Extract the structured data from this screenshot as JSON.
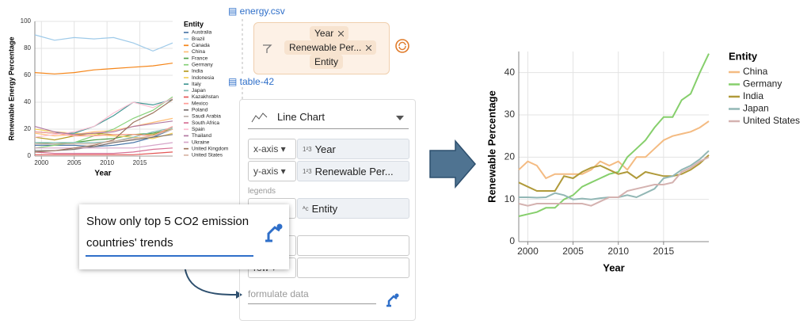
{
  "chart_data": [
    {
      "type": "line",
      "y_label": "Renewable Energy Percentage",
      "x_label": "Year",
      "legend_title": "Entity",
      "x": [
        1999,
        2002,
        2005,
        2008,
        2011,
        2014,
        2017,
        2020
      ],
      "xlim": [
        1999,
        2020
      ],
      "xticks": [
        2000,
        2005,
        2010,
        2015
      ],
      "ylim": [
        0,
        100
      ],
      "yticks": [
        0,
        20,
        40,
        60,
        80,
        100
      ],
      "grid": true,
      "series": [
        {
          "name": "Australia",
          "color": "#4c78a8",
          "values": [
            8,
            8,
            8,
            7,
            8,
            10,
            14,
            20
          ]
        },
        {
          "name": "Brazil",
          "color": "#9ecae9",
          "values": [
            90,
            86,
            88,
            87,
            88,
            84,
            78,
            84
          ]
        },
        {
          "name": "Canada",
          "color": "#f58518",
          "values": [
            62,
            61,
            62,
            64,
            65,
            66,
            67,
            69
          ]
        },
        {
          "name": "China",
          "color": "#ffbf79",
          "values": [
            17,
            15,
            16,
            18,
            19,
            22,
            25,
            28
          ]
        },
        {
          "name": "France",
          "color": "#54a24b",
          "values": [
            10,
            9,
            10,
            12,
            13,
            16,
            17,
            20
          ]
        },
        {
          "name": "Germany",
          "color": "#88d27a",
          "values": [
            6,
            8,
            10,
            15,
            20,
            28,
            34,
            44
          ]
        },
        {
          "name": "India",
          "color": "#b79a20",
          "values": [
            14,
            12,
            15,
            17,
            16,
            16,
            16,
            20
          ]
        },
        {
          "name": "Indonesia",
          "color": "#f2cf5b",
          "values": [
            20,
            18,
            17,
            16,
            15,
            14,
            13,
            17
          ]
        },
        {
          "name": "Italy",
          "color": "#439894",
          "values": [
            18,
            17,
            17,
            22,
            30,
            40,
            38,
            42
          ]
        },
        {
          "name": "Japan",
          "color": "#83bcb6",
          "values": [
            10,
            10,
            10,
            10,
            11,
            14,
            18,
            21
          ]
        },
        {
          "name": "Kazakhstan",
          "color": "#e45756",
          "values": [
            1,
            1,
            1,
            1,
            1,
            1,
            2,
            3
          ]
        },
        {
          "name": "Mexico",
          "color": "#ff9d98",
          "values": [
            18,
            17,
            15,
            15,
            16,
            16,
            15,
            22
          ]
        },
        {
          "name": "Poland",
          "color": "#79706e",
          "values": [
            4,
            4,
            5,
            7,
            10,
            12,
            14,
            16
          ]
        },
        {
          "name": "Saudi Arabia",
          "color": "#bab0ac",
          "values": [
            0,
            0,
            0,
            0,
            0,
            0,
            0,
            0
          ]
        },
        {
          "name": "South Africa",
          "color": "#d67195",
          "values": [
            3,
            2,
            2,
            2,
            2,
            3,
            5,
            6
          ]
        },
        {
          "name": "Spain",
          "color": "#fcbfd2",
          "values": [
            14,
            16,
            18,
            22,
            32,
            40,
            36,
            43
          ]
        },
        {
          "name": "Thailand",
          "color": "#b279a2",
          "values": [
            22,
            18,
            16,
            17,
            18,
            22,
            24,
            26
          ]
        },
        {
          "name": "Ukraine",
          "color": "#d6a5c9",
          "values": [
            6,
            6,
            6,
            6,
            6,
            6,
            8,
            10
          ]
        },
        {
          "name": "United Kingdom",
          "color": "#9e765f",
          "values": [
            3,
            4,
            6,
            8,
            12,
            25,
            32,
            42
          ]
        },
        {
          "name": "United States",
          "color": "#d8b5a5",
          "values": [
            9,
            9,
            9,
            9,
            11,
            13,
            15,
            20
          ]
        }
      ]
    },
    {
      "type": "line",
      "y_label": "Renewable Percentage",
      "x_label": "Year",
      "legend_title": "Entity",
      "x": [
        1999,
        2000,
        2001,
        2002,
        2003,
        2004,
        2005,
        2006,
        2007,
        2008,
        2009,
        2010,
        2011,
        2012,
        2013,
        2014,
        2015,
        2016,
        2017,
        2018,
        2019,
        2020
      ],
      "xlim": [
        1999,
        2020
      ],
      "xticks": [
        2000,
        2005,
        2010,
        2015
      ],
      "ylim": [
        0,
        45
      ],
      "yticks": [
        0,
        10,
        20,
        30,
        40
      ],
      "grid": true,
      "series": [
        {
          "name": "China",
          "color": "#f4bb82",
          "values": [
            17,
            19,
            18,
            15,
            16,
            16,
            16,
            16,
            17,
            19,
            18,
            19,
            17,
            20,
            20,
            22,
            24,
            25,
            25.5,
            26,
            27,
            28.5
          ]
        },
        {
          "name": "Germany",
          "color": "#86cf6c",
          "values": [
            6,
            6.5,
            7,
            8,
            8,
            10,
            11,
            13,
            14,
            15,
            16,
            16.5,
            20,
            22,
            24,
            27,
            29.5,
            29.5,
            33.5,
            35,
            40,
            44.5
          ]
        },
        {
          "name": "India",
          "color": "#b09a3a",
          "values": [
            14,
            13,
            12,
            12,
            12,
            15.5,
            15,
            16.5,
            17.5,
            18,
            17,
            16,
            16.5,
            15,
            16.5,
            16,
            15.5,
            15.5,
            16,
            17,
            18.5,
            20.5
          ]
        },
        {
          "name": "Japan",
          "color": "#92b7b5",
          "values": [
            10.5,
            10.5,
            10.4,
            10.5,
            11.5,
            11,
            10,
            10.2,
            10,
            10.3,
            10.5,
            10.5,
            11,
            10.5,
            11.5,
            12.5,
            15,
            15.5,
            17,
            18,
            19.5,
            21.5
          ]
        },
        {
          "name": "United States",
          "color": "#d4b2b0",
          "values": [
            9,
            8.5,
            9,
            9,
            9,
            9,
            9,
            9,
            8.5,
            9.5,
            10.5,
            10.5,
            12,
            12.5,
            13,
            13.5,
            13.5,
            14,
            16.5,
            17.5,
            19,
            20
          ]
        }
      ]
    }
  ],
  "ui": {
    "source_file": "energy.csv",
    "chips": [
      "Year",
      "Renewable Per...",
      "Entity"
    ],
    "table_name": "table-42",
    "chart_type": "Line Chart",
    "encodings": [
      {
        "channel": "x-axis",
        "type_icon": "1²3",
        "field": "Year"
      },
      {
        "channel": "y-axis",
        "type_icon": "1²3",
        "field": "Renewable Per..."
      }
    ],
    "legends_label": "legends",
    "legend_field": {
      "type_icon": "ᴬc",
      "field": "Entity"
    },
    "row_channel": "row",
    "formulate_placeholder": "formulate data",
    "prompt_lines": [
      "Show only top 5 CO2 emission",
      "countries' trends"
    ]
  }
}
